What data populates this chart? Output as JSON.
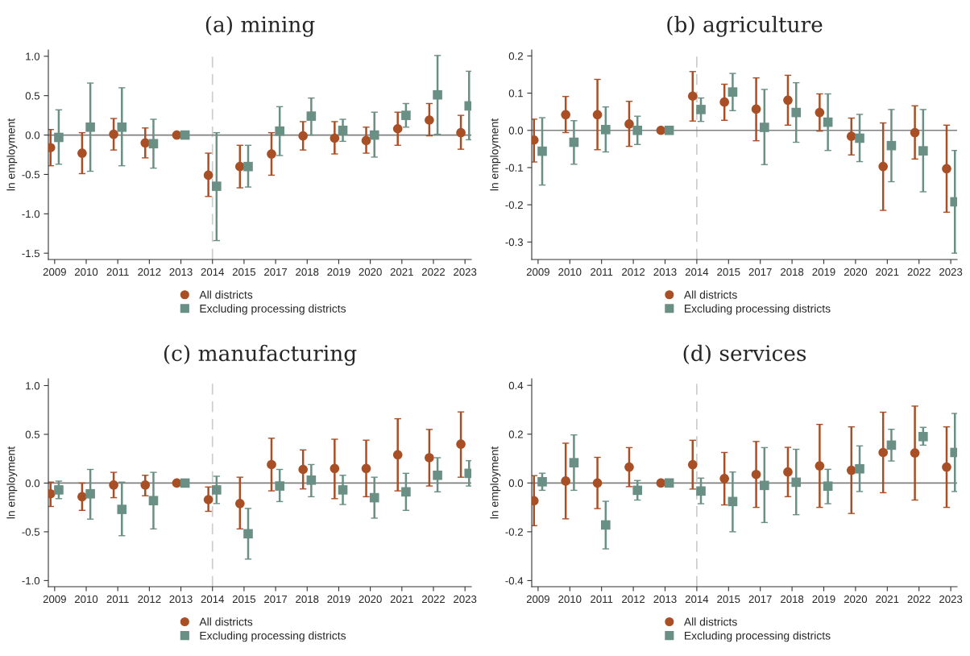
{
  "chart_data": [
    {
      "type": "scatter",
      "title": "(a) mining",
      "ylabel": "ln employment",
      "categories": [
        "2009",
        "2010",
        "2011",
        "2012",
        "2013",
        "2014",
        "2015",
        "2017",
        "2018",
        "2019",
        "2020",
        "2021",
        "2022",
        "2023"
      ],
      "ylim": [
        -1.58,
        1.08
      ],
      "yticks": [
        {
          "value": -1.5,
          "label": "-1.5"
        },
        {
          "value": -1.0,
          "label": "-1.0"
        },
        {
          "value": -0.5,
          "label": "-0.5"
        },
        {
          "value": 0.0,
          "label": "0.0"
        },
        {
          "value": 0.5,
          "label": "0.5"
        },
        {
          "value": 1.0,
          "label": "1.0"
        }
      ],
      "grid": false,
      "legend": "bottom",
      "ref_lines": [
        {
          "axis": "x",
          "value": "2014",
          "color": "#cccccc",
          "line_style": "dashed"
        },
        {
          "axis": "y",
          "value": 0,
          "color": "#808080",
          "line_style": "solid"
        }
      ],
      "series": [
        {
          "name": "All districts",
          "color": "#a94f26",
          "marker": "circle",
          "values": [
            -0.16,
            -0.23,
            0.01,
            -0.1,
            0,
            -0.51,
            -0.4,
            -0.24,
            -0.01,
            -0.04,
            -0.07,
            0.08,
            0.19,
            0.03
          ],
          "errors": [
            [
              -0.39,
              0.07
            ],
            [
              -0.49,
              0.03
            ],
            [
              -0.19,
              0.21
            ],
            [
              -0.29,
              0.09
            ],
            null,
            [
              -0.78,
              -0.23
            ],
            [
              -0.67,
              -0.13
            ],
            [
              -0.51,
              0.03
            ],
            [
              -0.19,
              0.17
            ],
            [
              -0.24,
              0.17
            ],
            [
              -0.23,
              0.1
            ],
            [
              -0.13,
              0.29
            ],
            [
              -0.01,
              0.4
            ],
            [
              -0.18,
              0.25
            ]
          ]
        },
        {
          "name": "Excluding processing districts",
          "color": "#6a8f84",
          "marker": "square",
          "values": [
            -0.03,
            0.1,
            0.1,
            -0.11,
            0,
            -0.65,
            -0.4,
            0.05,
            0.24,
            0.06,
            0.0,
            0.25,
            0.51,
            0.37
          ],
          "errors": [
            [
              -0.37,
              0.32
            ],
            [
              -0.46,
              0.66
            ],
            [
              -0.39,
              0.6
            ],
            [
              -0.42,
              0.2
            ],
            null,
            [
              -1.34,
              0.03
            ],
            [
              -0.66,
              -0.13
            ],
            [
              -0.26,
              0.36
            ],
            [
              0.0,
              0.47
            ],
            [
              -0.08,
              0.2
            ],
            [
              -0.28,
              0.29
            ],
            [
              0.1,
              0.4
            ],
            [
              0.01,
              1.01
            ],
            [
              -0.06,
              0.81
            ]
          ]
        }
      ]
    },
    {
      "type": "scatter",
      "title": "(b) agriculture",
      "ylabel": "ln employment",
      "categories": [
        "2009",
        "2010",
        "2011",
        "2012",
        "2013",
        "2014",
        "2015",
        "2017",
        "2018",
        "2019",
        "2020",
        "2021",
        "2022",
        "2023"
      ],
      "ylim": [
        -0.347,
        0.216
      ],
      "yticks": [
        {
          "value": -0.3,
          "label": "-0.3"
        },
        {
          "value": -0.2,
          "label": "-0.2"
        },
        {
          "value": -0.1,
          "label": "-0.1"
        },
        {
          "value": 0.0,
          "label": "0.0"
        },
        0.1,
        0.2
      ],
      "grid": false,
      "legend": "bottom",
      "ref_lines": [
        {
          "axis": "x",
          "value": "2014",
          "color": "#cccccc",
          "line_style": "dashed"
        },
        {
          "axis": "y",
          "value": 0,
          "color": "#808080",
          "line_style": "solid"
        }
      ],
      "series": [
        {
          "name": "All districts",
          "color": "#a94f26",
          "marker": "circle",
          "values": [
            -0.026,
            0.042,
            0.042,
            0.017,
            0,
            0.092,
            0.076,
            0.057,
            0.081,
            0.048,
            -0.016,
            -0.097,
            -0.006,
            -0.103
          ],
          "errors": [
            [
              -0.085,
              0.03
            ],
            [
              -0.006,
              0.091
            ],
            [
              -0.052,
              0.137
            ],
            [
              -0.043,
              0.078
            ],
            null,
            [
              0.025,
              0.158
            ],
            [
              0.027,
              0.124
            ],
            [
              -0.028,
              0.141
            ],
            [
              0.014,
              0.148
            ],
            [
              -0.002,
              0.098
            ],
            [
              -0.066,
              0.033
            ],
            [
              -0.215,
              0.02
            ],
            [
              -0.077,
              0.066
            ],
            [
              -0.22,
              0.014
            ]
          ]
        },
        {
          "name": "Excluding processing districts",
          "color": "#6a8f84",
          "marker": "square",
          "values": [
            -0.056,
            -0.032,
            0.002,
            0.0,
            0,
            0.056,
            0.103,
            0.008,
            0.048,
            0.022,
            -0.021,
            -0.041,
            -0.055,
            -0.192
          ],
          "errors": [
            [
              -0.147,
              0.034
            ],
            [
              -0.091,
              0.026
            ],
            [
              -0.058,
              0.063
            ],
            [
              -0.038,
              0.038
            ],
            null,
            [
              0.024,
              0.087
            ],
            [
              0.053,
              0.153
            ],
            [
              -0.092,
              0.11
            ],
            [
              -0.032,
              0.128
            ],
            [
              -0.054,
              0.098
            ],
            [
              -0.084,
              0.043
            ],
            [
              -0.138,
              0.056
            ],
            [
              -0.165,
              0.056
            ],
            [
              -0.33,
              -0.054
            ]
          ]
        }
      ]
    },
    {
      "type": "scatter",
      "title": "(c) manufacturing",
      "ylabel": "ln employment",
      "categories": [
        "2009",
        "2010",
        "2011",
        "2012",
        "2013",
        "2014",
        "2015",
        "2017",
        "2018",
        "2019",
        "2020",
        "2021",
        "2022",
        "2023"
      ],
      "ylim": [
        -1.063,
        1.07
      ],
      "yticks": [
        {
          "value": -1.0,
          "label": "-1.0"
        },
        {
          "value": -0.5,
          "label": "-0.5"
        },
        {
          "value": 0.0,
          "label": "0.0"
        },
        0.5,
        {
          "value": 1.0,
          "label": "1.0"
        }
      ],
      "grid": false,
      "legend": "bottom",
      "ref_lines": [
        {
          "axis": "x",
          "value": "2014",
          "color": "#cccccc",
          "line_style": "dashed"
        },
        {
          "axis": "y",
          "value": 0,
          "color": "#808080",
          "line_style": "solid"
        }
      ],
      "series": [
        {
          "name": "All districts",
          "color": "#a94f26",
          "marker": "circle",
          "values": [
            -0.11,
            -0.14,
            -0.02,
            -0.02,
            0,
            -0.17,
            -0.21,
            0.19,
            0.14,
            0.15,
            0.15,
            0.29,
            0.26,
            0.4
          ],
          "errors": [
            [
              -0.24,
              0.01
            ],
            [
              -0.28,
              0.0
            ],
            [
              -0.15,
              0.11
            ],
            [
              -0.13,
              0.08
            ],
            null,
            [
              -0.29,
              -0.04
            ],
            [
              -0.47,
              0.06
            ],
            [
              -0.08,
              0.46
            ],
            [
              -0.06,
              0.34
            ],
            [
              -0.16,
              0.45
            ],
            [
              -0.14,
              0.44
            ],
            [
              -0.08,
              0.66
            ],
            [
              -0.03,
              0.55
            ],
            [
              0.06,
              0.73
            ]
          ]
        },
        {
          "name": "Excluding processing districts",
          "color": "#6a8f84",
          "marker": "square",
          "values": [
            -0.07,
            -0.11,
            -0.27,
            -0.18,
            0,
            -0.07,
            -0.52,
            -0.03,
            0.03,
            -0.07,
            -0.15,
            -0.09,
            0.08,
            0.1
          ],
          "errors": [
            [
              -0.16,
              0.02
            ],
            [
              -0.37,
              0.14
            ],
            [
              -0.54,
              0.01
            ],
            [
              -0.47,
              0.11
            ],
            null,
            [
              -0.21,
              0.07
            ],
            [
              -0.78,
              -0.26
            ],
            [
              -0.19,
              0.14
            ],
            [
              -0.14,
              0.19
            ],
            [
              -0.22,
              0.08
            ],
            [
              -0.36,
              0.06
            ],
            [
              -0.28,
              0.1
            ],
            [
              -0.09,
              0.26
            ],
            [
              -0.03,
              0.23
            ]
          ]
        }
      ]
    },
    {
      "type": "scatter",
      "title": "(d) services",
      "ylabel": "ln employment",
      "categories": [
        "2009",
        "2010",
        "2011",
        "2012",
        "2013",
        "2014",
        "2015",
        "2017",
        "2018",
        "2019",
        "2020",
        "2021",
        "2022",
        "2023"
      ],
      "ylim": [
        -0.425,
        0.427
      ],
      "yticks": [
        {
          "value": -0.4,
          "label": "-0.4"
        },
        {
          "value": -0.2,
          "label": "-0.2"
        },
        {
          "value": 0.0,
          "label": "0.0"
        },
        0.2,
        0.4
      ],
      "grid": false,
      "legend": "bottom",
      "ref_lines": [
        {
          "axis": "x",
          "value": "2014",
          "color": "#cccccc",
          "line_style": "dashed"
        },
        {
          "axis": "y",
          "value": 0,
          "color": "#808080",
          "line_style": "solid"
        }
      ],
      "series": [
        {
          "name": "All districts",
          "color": "#a94f26",
          "marker": "circle",
          "values": [
            -0.073,
            0.008,
            0.0,
            0.065,
            0,
            0.075,
            0.018,
            0.035,
            0.045,
            0.07,
            0.052,
            0.125,
            0.123,
            0.065
          ],
          "errors": [
            [
              -0.175,
              0.03
            ],
            [
              -0.147,
              0.163
            ],
            [
              -0.105,
              0.105
            ],
            [
              -0.015,
              0.145
            ],
            null,
            [
              -0.025,
              0.175
            ],
            [
              -0.09,
              0.125
            ],
            [
              -0.1,
              0.17
            ],
            [
              -0.056,
              0.146
            ],
            [
              -0.1,
              0.24
            ],
            [
              -0.125,
              0.23
            ],
            [
              -0.04,
              0.29
            ],
            [
              -0.07,
              0.315
            ],
            [
              -0.1,
              0.23
            ]
          ]
        },
        {
          "name": "Excluding processing districts",
          "color": "#6a8f84",
          "marker": "square",
          "values": [
            0.005,
            0.083,
            -0.172,
            -0.03,
            0,
            -0.033,
            -0.076,
            -0.01,
            0.003,
            -0.013,
            0.058,
            0.155,
            0.19,
            0.125
          ],
          "errors": [
            [
              -0.03,
              0.04
            ],
            [
              -0.03,
              0.197
            ],
            [
              -0.27,
              -0.075
            ],
            [
              -0.07,
              0.01
            ],
            null,
            [
              -0.085,
              0.02
            ],
            [
              -0.2,
              0.045
            ],
            [
              -0.162,
              0.145
            ],
            [
              -0.13,
              0.138
            ],
            [
              -0.085,
              0.056
            ],
            [
              -0.035,
              0.152
            ],
            [
              0.09,
              0.22
            ],
            [
              0.155,
              0.228
            ],
            [
              -0.035,
              0.285
            ]
          ]
        }
      ]
    }
  ]
}
